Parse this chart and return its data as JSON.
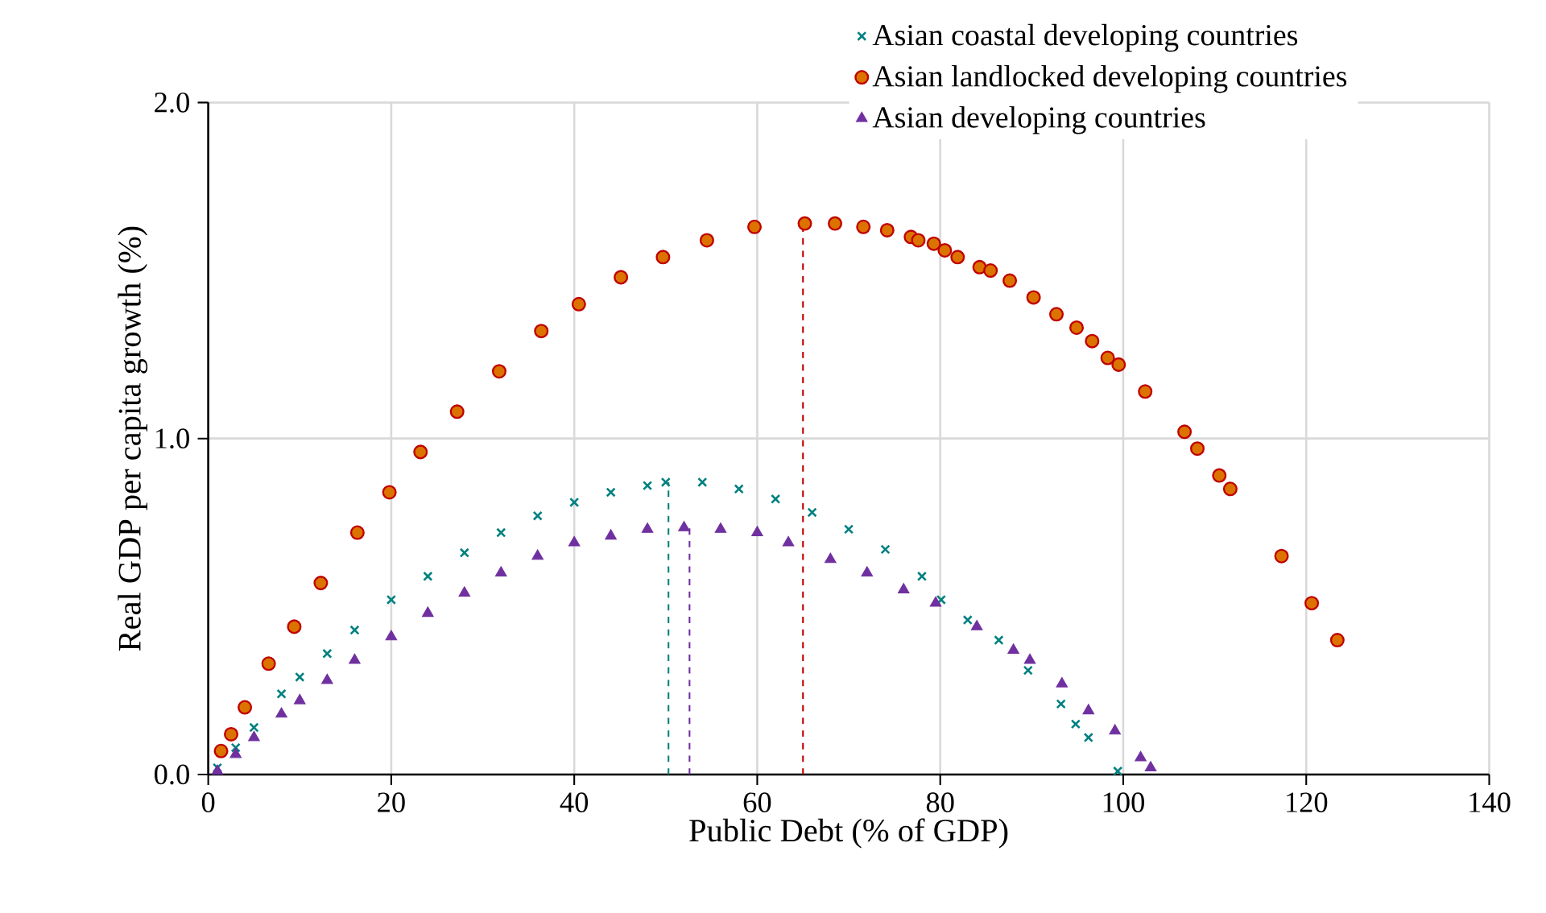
{
  "chart_data": {
    "type": "scatter",
    "xlabel": "Public Debt (% of GDP)",
    "ylabel": "Real GDP per capita growth (%)",
    "xlim": [
      0,
      140
    ],
    "xticks": [
      0,
      20,
      40,
      60,
      80,
      100,
      120,
      140
    ],
    "ylim": [
      0,
      2.0
    ],
    "yticks": [
      {
        "value": 0,
        "label": "0.0"
      },
      {
        "value": 1,
        "label": "1.0"
      },
      {
        "value": 2,
        "label": "2.0"
      }
    ],
    "grid": true,
    "legend": "top right",
    "series": [
      {
        "name": "Asian coastal developing countries",
        "color": "#008080",
        "marker": "cross",
        "x": [
          1,
          3,
          5,
          8,
          10,
          13,
          16,
          20,
          24,
          28,
          32,
          36,
          40,
          44,
          48,
          50,
          54,
          58,
          62,
          66,
          70,
          74,
          78,
          80.1,
          83,
          86.4,
          89.6,
          93.2,
          94.8,
          96.2,
          99.4
        ],
        "values": [
          0.02,
          0.08,
          0.14,
          0.24,
          0.29,
          0.36,
          0.43,
          0.52,
          0.59,
          0.66,
          0.72,
          0.77,
          0.81,
          0.84,
          0.86,
          0.87,
          0.87,
          0.85,
          0.82,
          0.78,
          0.73,
          0.67,
          0.59,
          0.52,
          0.46,
          0.4,
          0.31,
          0.21,
          0.15,
          0.11,
          0.01
        ]
      },
      {
        "name": "Asian landlocked developing countries",
        "color": "#c00000",
        "marker": "circle",
        "x": [
          1.4,
          2.5,
          4.0,
          6.6,
          9.4,
          12.3,
          16.3,
          19.8,
          23.2,
          27.2,
          31.8,
          36.4,
          40.5,
          45.1,
          49.7,
          54.5,
          59.7,
          65.2,
          68.5,
          71.6,
          74.2,
          76.8,
          77.6,
          79.3,
          80.5,
          81.9,
          84.3,
          85.5,
          87.6,
          90.2,
          92.7,
          94.9,
          96.6,
          98.3,
          99.5,
          102.4,
          106.7,
          108.1,
          110.5,
          111.7,
          117.3,
          120.6,
          123.4
        ],
        "values": [
          0.07,
          0.12,
          0.2,
          0.33,
          0.44,
          0.57,
          0.72,
          0.84,
          0.96,
          1.08,
          1.2,
          1.32,
          1.4,
          1.48,
          1.54,
          1.59,
          1.63,
          1.64,
          1.64,
          1.63,
          1.62,
          1.6,
          1.59,
          1.58,
          1.56,
          1.54,
          1.51,
          1.5,
          1.47,
          1.42,
          1.37,
          1.33,
          1.29,
          1.24,
          1.22,
          1.14,
          1.02,
          0.97,
          0.89,
          0.85,
          0.65,
          0.51,
          0.4
        ]
      },
      {
        "name": "Asian developing countries",
        "color": "#7030a0",
        "marker": "triangle",
        "x": [
          1,
          3,
          5,
          8,
          10,
          13,
          16,
          20,
          24,
          28,
          32,
          36,
          40,
          44,
          48,
          52,
          56,
          60,
          63.4,
          68,
          72,
          76,
          79.5,
          84,
          88,
          89.8,
          93.3,
          96.2,
          99.1,
          101.9,
          103
        ],
        "values": [
          0.01,
          0.06,
          0.11,
          0.18,
          0.22,
          0.28,
          0.34,
          0.41,
          0.48,
          0.54,
          0.6,
          0.65,
          0.69,
          0.71,
          0.73,
          0.735,
          0.73,
          0.72,
          0.69,
          0.64,
          0.6,
          0.55,
          0.51,
          0.44,
          0.37,
          0.34,
          0.27,
          0.19,
          0.13,
          0.05,
          0.02
        ]
      }
    ],
    "ref_lines": [
      {
        "axis": "x",
        "value": 50.3,
        "color": "#008080",
        "line_style": "dashed"
      },
      {
        "axis": "x",
        "value": 52.6,
        "color": "#7030a0",
        "line_style": "dashed"
      },
      {
        "axis": "x",
        "value": 65.0,
        "color": "#c00000",
        "line_style": "dashed"
      }
    ]
  }
}
